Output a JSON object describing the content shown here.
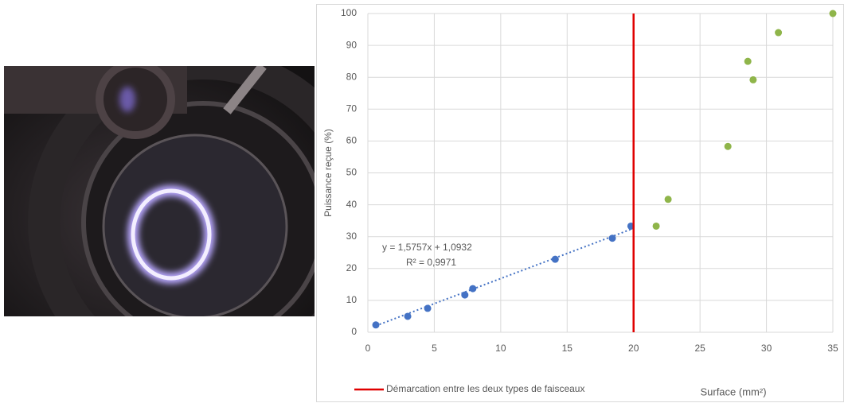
{
  "chart_data": {
    "type": "scatter",
    "xlabel": "Surface (mm²)",
    "ylabel": "Puissance reçue (%)",
    "xlim": [
      0,
      35
    ],
    "xticks": [
      0,
      5,
      10,
      15,
      20,
      25,
      30,
      35
    ],
    "ylim": [
      0,
      100
    ],
    "yticks": [
      0,
      10,
      20,
      30,
      40,
      50,
      60,
      70,
      80,
      90,
      100
    ],
    "grid": true,
    "series": [
      {
        "color": "#4472c4",
        "x": [
          0.6,
          3.0,
          4.5,
          7.3,
          7.9,
          14.1,
          18.4,
          19.8
        ],
        "values": [
          2.3,
          5.0,
          7.5,
          11.7,
          13.7,
          22.9,
          29.5,
          33.3
        ]
      },
      {
        "color": "#8fb54a",
        "x": [
          21.7,
          22.6,
          27.1,
          28.6,
          29.0,
          30.9,
          35.0
        ],
        "values": [
          33.3,
          41.7,
          58.3,
          85.0,
          79.2,
          94.0,
          100.0
        ]
      }
    ],
    "trendline": {
      "slope": 1.5757,
      "intercept": 1.0932,
      "label": "y = 1,5757x + 1,0932",
      "r2": 0.9971,
      "r2_label": "R² = 0,9971",
      "color": "#4472c4"
    },
    "vline": {
      "x": 20,
      "color": "#e00000",
      "label": "Démarcation entre les deux types de faisceaux"
    }
  }
}
